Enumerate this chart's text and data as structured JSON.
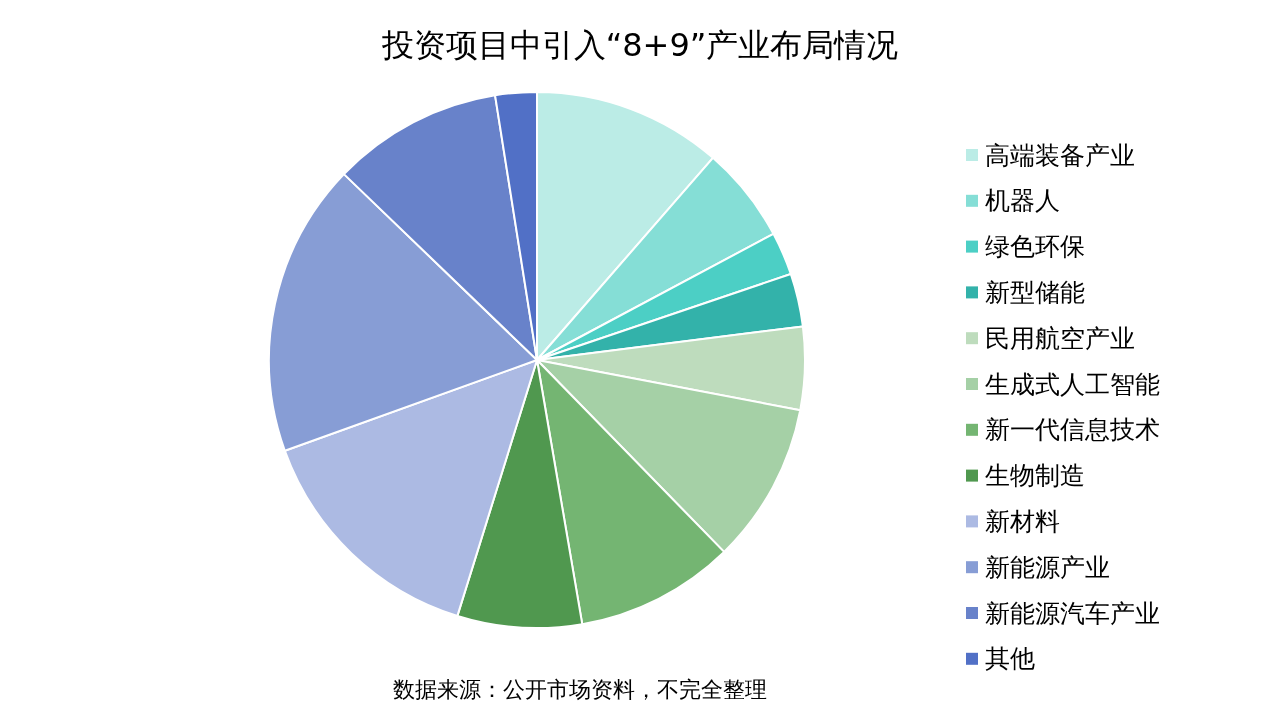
{
  "chart_data": {
    "type": "pie",
    "title": "投资项目中引入“8+9”产业布局情况",
    "categories": [
      "高端装备产业",
      "机器人",
      "绿色环保",
      "新型储能",
      "民用航空产业",
      "生成式人工智能",
      "新一代信息技术",
      "生物制造",
      "新材料",
      "新能源产业",
      "新能源汽车产业",
      "其他"
    ],
    "values": [
      11.4,
      5.8,
      2.6,
      3.2,
      5.0,
      9.7,
      9.6,
      7.5,
      14.7,
      17.7,
      10.3,
      2.5
    ],
    "colors": [
      "#bbece6",
      "#85ded6",
      "#4ccfc5",
      "#33b2aa",
      "#bedcbd",
      "#a5d0a6",
      "#74b572",
      "#50984f",
      "#acbae3",
      "#879dd5",
      "#6882ca",
      "#5170c6"
    ],
    "legend": "right",
    "annotations": [
      "数据来源：公开市场资料，不完全整理"
    ]
  }
}
